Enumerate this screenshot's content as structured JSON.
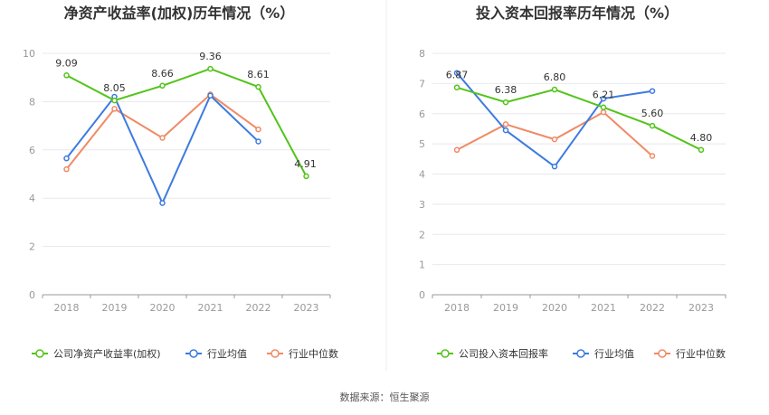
{
  "source": "数据来源：恒生聚源",
  "chart_data": [
    {
      "type": "line",
      "title": "净资产收益率(加权)历年情况（%）",
      "categories": [
        "2018",
        "2019",
        "2020",
        "2021",
        "2022",
        "2023"
      ],
      "ylim": [
        0,
        10
      ],
      "yticks": [
        "0",
        "2",
        "4",
        "6",
        "8",
        "10"
      ],
      "grid": true,
      "legend": "bottom",
      "series": [
        {
          "name": "公司净资产收益率(加权)",
          "color": "#52c41a",
          "values": [
            9.09,
            8.05,
            8.66,
            9.36,
            8.61,
            4.91
          ],
          "labels": [
            "9.09",
            "8.05",
            "8.66",
            "9.36",
            "8.61",
            "4.91"
          ]
        },
        {
          "name": "行业均值",
          "color": "#3d7be0",
          "values": [
            5.65,
            8.2,
            3.8,
            8.25,
            6.35,
            null
          ]
        },
        {
          "name": "行业中位数",
          "color": "#f08a65",
          "values": [
            5.2,
            7.7,
            6.5,
            8.3,
            6.85,
            null
          ]
        }
      ]
    },
    {
      "type": "line",
      "title": "投入资本回报率历年情况（%）",
      "categories": [
        "2018",
        "2019",
        "2020",
        "2021",
        "2022",
        "2023"
      ],
      "ylim": [
        0,
        8
      ],
      "yticks": [
        "0",
        "1",
        "2",
        "3",
        "4",
        "5",
        "6",
        "7",
        "8"
      ],
      "grid": true,
      "legend": "bottom",
      "series": [
        {
          "name": "公司投入资本回报率",
          "color": "#52c41a",
          "values": [
            6.87,
            6.38,
            6.8,
            6.21,
            5.6,
            4.8
          ],
          "labels": [
            "6.87",
            "6.38",
            "6.80",
            "6.21",
            "5.60",
            "4.80"
          ]
        },
        {
          "name": "行业均值",
          "color": "#3d7be0",
          "values": [
            7.35,
            5.45,
            4.25,
            6.5,
            6.75,
            null
          ]
        },
        {
          "name": "行业中位数",
          "color": "#f08a65",
          "values": [
            4.8,
            5.65,
            5.15,
            6.05,
            4.6,
            null
          ]
        }
      ]
    }
  ]
}
